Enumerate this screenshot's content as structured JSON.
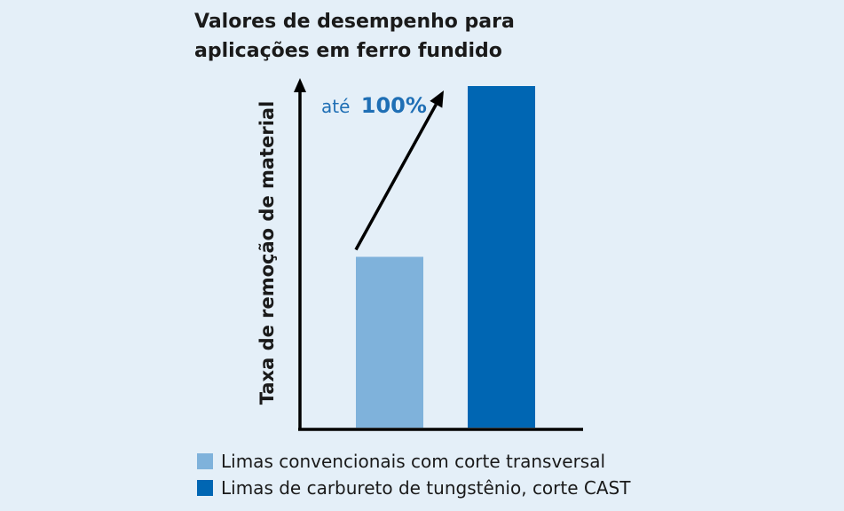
{
  "chart_data": {
    "type": "bar",
    "title": [
      "Valores de desempenho para",
      "aplicações em ferro fundido"
    ],
    "ylabel": "Taxa de remoção de material",
    "xlabel": "",
    "categories": [
      "Limas convencionais com corte transversal",
      "Limas de carbureto de tungstênio, corte CAST"
    ],
    "values": [
      100,
      200
    ],
    "ylim": [
      0,
      200
    ],
    "grid": false,
    "legend_position": "bottom",
    "colors": [
      "#7fb2db",
      "#0066b3"
    ],
    "annotation": {
      "prefix": "até",
      "value": "100%",
      "color": "#1f6fb5"
    }
  }
}
